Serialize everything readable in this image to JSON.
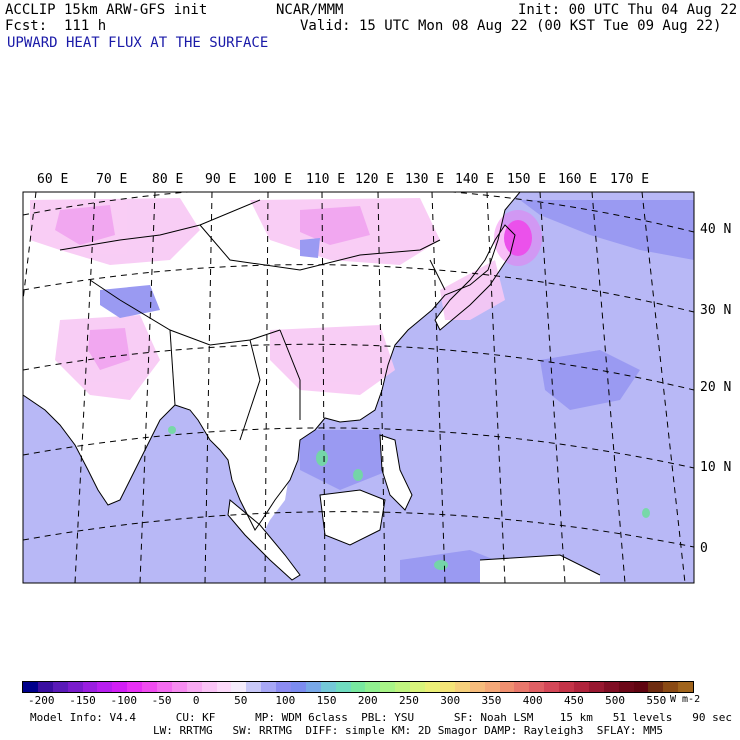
{
  "header": {
    "model": "ACCLIP 15km ARW-GFS init",
    "forecast": "Fcst:  111 h",
    "field": "UPWARD HEAT FLUX AT THE SURFACE",
    "org": "NCAR/MMM",
    "init": "Init: 00 UTC Thu 04 Aug 22",
    "valid": "Valid: 15 UTC Mon 08 Aug 22 (00 KST Tue 09 Aug 22)"
  },
  "lon_labels": [
    "60 E",
    "70 E",
    "80 E",
    "90 E",
    "100 E",
    "110 E",
    "120 E",
    "130 E",
    "140 E",
    "150 E",
    "160 E",
    "170 E"
  ],
  "lat_labels": [
    "40 N",
    "30 N",
    "20 N",
    "10 N",
    "0"
  ],
  "colorbar": {
    "labels": [
      "-200",
      "-150",
      "-100",
      "-50",
      "0",
      "50",
      "100",
      "150",
      "200",
      "250",
      "300",
      "350",
      "400",
      "450",
      "500",
      "550"
    ],
    "unit": "W m-2",
    "colors": [
      "#00008b",
      "#3a0ea0",
      "#5a1ab8",
      "#7a1ccc",
      "#9a1ee0",
      "#b81ef0",
      "#d21ef5",
      "#e830f5",
      "#f04cf0",
      "#f46cf0",
      "#f68cf0",
      "#f8aaf2",
      "#fac4f6",
      "#fcdafa",
      "#f4ecfc",
      "#c8c8f8",
      "#a8a8f6",
      "#8c8cf2",
      "#7c8cf0",
      "#78a8e8",
      "#74c8d8",
      "#70dcc0",
      "#78e8a0",
      "#90f090",
      "#a8f488",
      "#c0f480",
      "#d8f47c",
      "#ecf078",
      "#f4e478",
      "#f6d07c",
      "#f6bc7c",
      "#f4a878",
      "#f09070",
      "#e8786c",
      "#e06064",
      "#d44858",
      "#c43448",
      "#b0243c",
      "#981830",
      "#800e24",
      "#6c0818",
      "#600410",
      "#6e2c10",
      "#8a4a14",
      "#a0641c"
    ]
  },
  "footer": {
    "line1": "Model Info: V4.4      CU: KF      MP: WDM 6class  PBL: YSU      SF: Noah LSM    15 km   51 levels   90 sec",
    "line2": "LW: RRTMG   SW: RRTMG  DIFF: simple KM: 2D Smagor DAMP: Rayleigh3  SFLAY: MM5"
  }
}
